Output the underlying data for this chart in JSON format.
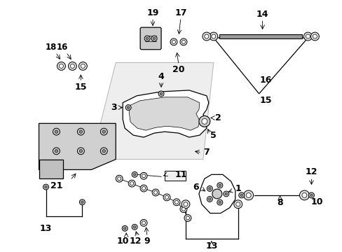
{
  "bg_color": "#ffffff",
  "fig_width": 4.89,
  "fig_height": 3.6,
  "dpi": 100,
  "black": "#000000",
  "gray_light": "#cccccc",
  "gray_med": "#aaaaaa",
  "gray_fill": "#e8e8e8"
}
